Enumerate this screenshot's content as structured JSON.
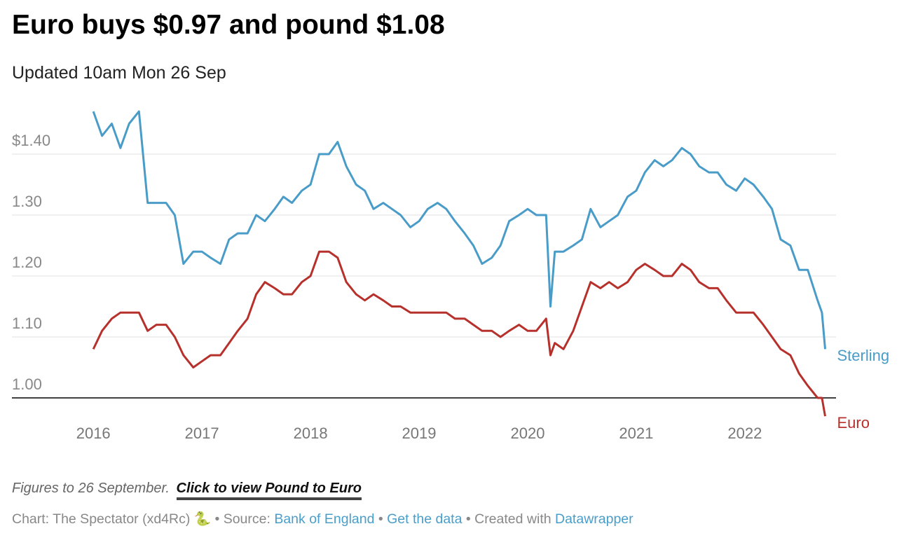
{
  "chart_data": {
    "type": "line",
    "title": "Euro buys $0.97 and pound $1.08",
    "subtitle": "Updated 10am Mon 26 Sep",
    "x": [
      2016.0,
      2016.08,
      2016.17,
      2016.25,
      2016.33,
      2016.42,
      2016.5,
      2016.58,
      2016.67,
      2016.75,
      2016.83,
      2016.92,
      2017.0,
      2017.08,
      2017.17,
      2017.25,
      2017.33,
      2017.42,
      2017.5,
      2017.58,
      2017.67,
      2017.75,
      2017.83,
      2017.92,
      2018.0,
      2018.08,
      2018.17,
      2018.25,
      2018.33,
      2018.42,
      2018.5,
      2018.58,
      2018.67,
      2018.75,
      2018.83,
      2018.92,
      2019.0,
      2019.08,
      2019.17,
      2019.25,
      2019.33,
      2019.42,
      2019.5,
      2019.58,
      2019.67,
      2019.75,
      2019.83,
      2019.92,
      2020.0,
      2020.08,
      2020.17,
      2020.21,
      2020.25,
      2020.33,
      2020.42,
      2020.5,
      2020.58,
      2020.67,
      2020.75,
      2020.83,
      2020.92,
      2021.0,
      2021.08,
      2021.17,
      2021.25,
      2021.33,
      2021.42,
      2021.5,
      2021.58,
      2021.67,
      2021.75,
      2021.83,
      2021.92,
      2022.0,
      2022.08,
      2022.17,
      2022.25,
      2022.33,
      2022.42,
      2022.5,
      2022.58,
      2022.67,
      2022.71,
      2022.74
    ],
    "series": [
      {
        "name": "Sterling",
        "color": "#4a9cc8",
        "values": [
          1.47,
          1.43,
          1.45,
          1.41,
          1.45,
          1.47,
          1.32,
          1.32,
          1.32,
          1.3,
          1.22,
          1.24,
          1.24,
          1.23,
          1.22,
          1.26,
          1.27,
          1.27,
          1.3,
          1.29,
          1.31,
          1.33,
          1.32,
          1.34,
          1.35,
          1.4,
          1.4,
          1.42,
          1.38,
          1.35,
          1.34,
          1.31,
          1.32,
          1.31,
          1.3,
          1.28,
          1.29,
          1.31,
          1.32,
          1.31,
          1.29,
          1.27,
          1.25,
          1.22,
          1.23,
          1.25,
          1.29,
          1.3,
          1.31,
          1.3,
          1.3,
          1.15,
          1.24,
          1.24,
          1.25,
          1.26,
          1.31,
          1.28,
          1.29,
          1.3,
          1.33,
          1.34,
          1.37,
          1.39,
          1.38,
          1.39,
          1.41,
          1.4,
          1.38,
          1.37,
          1.37,
          1.35,
          1.34,
          1.36,
          1.35,
          1.33,
          1.31,
          1.26,
          1.25,
          1.21,
          1.21,
          1.16,
          1.14,
          1.08
        ]
      },
      {
        "name": "Euro",
        "color": "#b7312c",
        "values": [
          1.08,
          1.11,
          1.13,
          1.14,
          1.14,
          1.14,
          1.11,
          1.12,
          1.12,
          1.1,
          1.07,
          1.05,
          1.06,
          1.07,
          1.07,
          1.09,
          1.11,
          1.13,
          1.17,
          1.19,
          1.18,
          1.17,
          1.17,
          1.19,
          1.2,
          1.24,
          1.24,
          1.23,
          1.19,
          1.17,
          1.16,
          1.17,
          1.16,
          1.15,
          1.15,
          1.14,
          1.14,
          1.14,
          1.14,
          1.14,
          1.13,
          1.13,
          1.12,
          1.11,
          1.11,
          1.1,
          1.11,
          1.12,
          1.11,
          1.11,
          1.13,
          1.07,
          1.09,
          1.08,
          1.11,
          1.15,
          1.19,
          1.18,
          1.19,
          1.18,
          1.19,
          1.21,
          1.22,
          1.21,
          1.2,
          1.2,
          1.22,
          1.21,
          1.19,
          1.18,
          1.18,
          1.16,
          1.14,
          1.14,
          1.14,
          1.12,
          1.1,
          1.08,
          1.07,
          1.04,
          1.02,
          1.0,
          1.0,
          0.97
        ]
      }
    ],
    "xlim": [
      2015.25,
      2022.84
    ],
    "xticks": [
      2016,
      2017,
      2018,
      2019,
      2020,
      2021,
      2022
    ],
    "ylim": [
      0.96,
      1.48
    ],
    "yticks": [
      {
        "value": 1.0,
        "label": "1.00"
      },
      {
        "value": 1.1,
        "label": "1.10"
      },
      {
        "value": 1.2,
        "label": "1.20"
      },
      {
        "value": 1.3,
        "label": "1.30"
      },
      {
        "value": 1.4,
        "label": "$1.40"
      }
    ],
    "grid": true,
    "notes": "Figures to 26 September.",
    "link": "Click to view Pound to Euro",
    "credit": "Chart: The Spectator (xd4Rc) 🐍",
    "separator": "•",
    "source_label": "Source:",
    "source": "Bank of England",
    "data_link": "Get the data",
    "created_label": "Created with",
    "created_tool": "Datawrapper"
  }
}
